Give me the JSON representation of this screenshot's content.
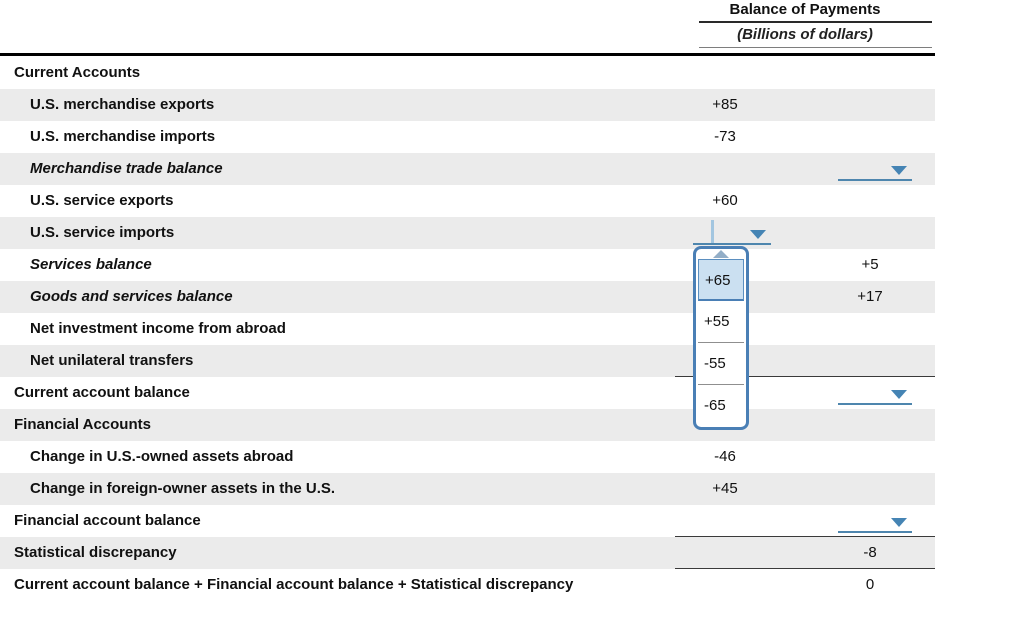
{
  "header": {
    "title": "Balance of Payments",
    "subtitle": "(Billions of dollars)"
  },
  "rows": [
    {
      "label": "Current Accounts"
    },
    {
      "label": "U.S. merchandise exports",
      "mid": "+85"
    },
    {
      "label": "U.S. merchandise imports",
      "mid": "-73"
    },
    {
      "label": "Merchandise trade balance"
    },
    {
      "label": "U.S. service exports",
      "mid": "+60"
    },
    {
      "label": "U.S. service imports"
    },
    {
      "label": "Services balance",
      "right": "+5"
    },
    {
      "label": "Goods and services balance",
      "right": "+17"
    },
    {
      "label": "Net investment income from abroad"
    },
    {
      "label": "Net unilateral transfers"
    },
    {
      "label": "Current account balance"
    },
    {
      "label": "Financial Accounts"
    },
    {
      "label": "Change in U.S.-owned assets abroad",
      "mid": "-46"
    },
    {
      "label": "Change in foreign-owner assets in the U.S.",
      "mid": "+45"
    },
    {
      "label": "Financial account balance"
    },
    {
      "label": "Statistical discrepancy",
      "right": "-8"
    },
    {
      "label": "Current account balance + Financial account balance + Statistical discrepancy",
      "right": "0"
    }
  ],
  "dropdown": {
    "options": [
      "+65",
      "+55",
      "-55",
      "-65"
    ],
    "selected": "+65"
  },
  "colors": {
    "accent_blue": "#4584b4",
    "dropdown_border": "#4a7fb5",
    "selected_option_bg": "#cbe0f1",
    "row_alt_bg": "#ebebeb"
  }
}
